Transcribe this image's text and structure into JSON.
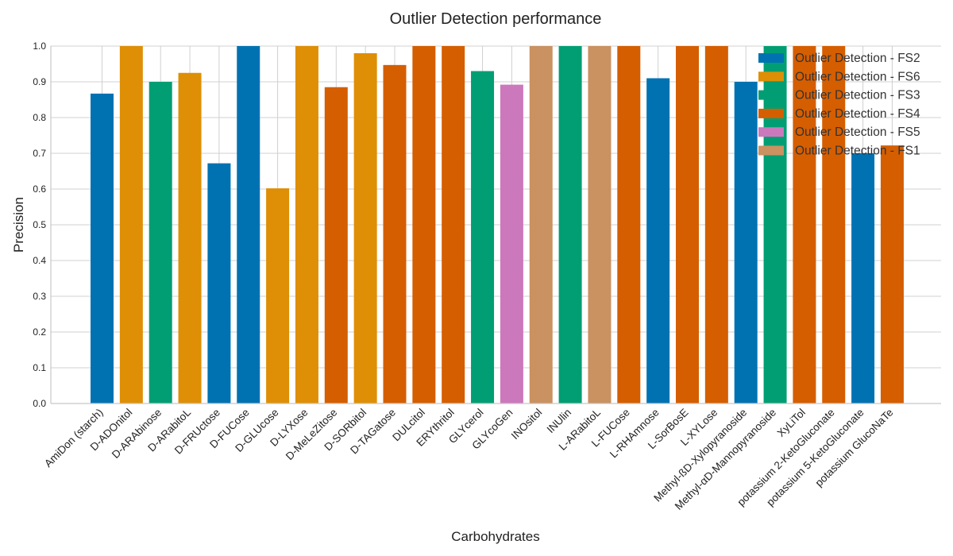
{
  "chart_data": {
    "type": "bar",
    "title": "Outlier Detection performance",
    "xlabel": "Carbohydrates",
    "ylabel": "Precision",
    "ylim": [
      0,
      1.0
    ],
    "yticks": [
      "0.0",
      "0.1",
      "0.2",
      "0.3",
      "0.4",
      "0.5",
      "0.6",
      "0.7",
      "0.8",
      "0.9",
      "1.0"
    ],
    "grid": true,
    "legend_position": "top-right",
    "series_colors": {
      "Outlier Detection - FS2": "#0072b2",
      "Outlier Detection - FS6": "#de8f05",
      "Outlier Detection - FS3": "#029e73",
      "Outlier Detection - FS4": "#d55e00",
      "Outlier Detection - FS5": "#cc78bc",
      "Outlier Detection - FS1": "#ca9161"
    },
    "legend": [
      "Outlier Detection - FS2",
      "Outlier Detection - FS6",
      "Outlier Detection - FS3",
      "Outlier Detection - FS4",
      "Outlier Detection - FS5",
      "Outlier Detection - FS1"
    ],
    "categories": [
      "AmiDon (starch)",
      "D-ADOnitol",
      "D-ARAbinose",
      "D-ARabitoL",
      "D-FRUctose",
      "D-FUCose",
      "D-GLUcose",
      "D-LYXose",
      "D-MeLeZitose",
      "D-SORbitol",
      "D-TAGatose",
      "DULcitol",
      "ERYthritol",
      "GLYcerol",
      "GLYcoGen",
      "INOsitol",
      "INUlin",
      "L-ARabitoL",
      "L-FUCose",
      "L-RHAmnose",
      "L-SorBosE",
      "L-XYLose",
      "Methyl-ßD-Xylopyranoside",
      "Methyl-αD-Mannopyranoside",
      "XyLiTol",
      "potassium 2-KetoGluconate",
      "potassium 5-KetoGluconate",
      "potassium GlucoNaTe"
    ],
    "values": [
      0.867,
      1.0,
      0.9,
      0.925,
      0.672,
      1.0,
      0.602,
      1.0,
      0.885,
      0.98,
      0.947,
      1.0,
      1.0,
      0.93,
      0.892,
      1.0,
      1.0,
      1.0,
      1.0,
      0.91,
      1.0,
      1.0,
      0.9,
      1.0,
      1.0,
      1.0,
      0.7,
      0.722
    ],
    "bar_series": [
      "Outlier Detection - FS2",
      "Outlier Detection - FS6",
      "Outlier Detection - FS3",
      "Outlier Detection - FS6",
      "Outlier Detection - FS2",
      "Outlier Detection - FS2",
      "Outlier Detection - FS6",
      "Outlier Detection - FS6",
      "Outlier Detection - FS4",
      "Outlier Detection - FS6",
      "Outlier Detection - FS4",
      "Outlier Detection - FS4",
      "Outlier Detection - FS4",
      "Outlier Detection - FS3",
      "Outlier Detection - FS5",
      "Outlier Detection - FS1",
      "Outlier Detection - FS3",
      "Outlier Detection - FS1",
      "Outlier Detection - FS4",
      "Outlier Detection - FS2",
      "Outlier Detection - FS4",
      "Outlier Detection - FS4",
      "Outlier Detection - FS2",
      "Outlier Detection - FS3",
      "Outlier Detection - FS4",
      "Outlier Detection - FS4",
      "Outlier Detection - FS2",
      "Outlier Detection - FS4"
    ]
  }
}
